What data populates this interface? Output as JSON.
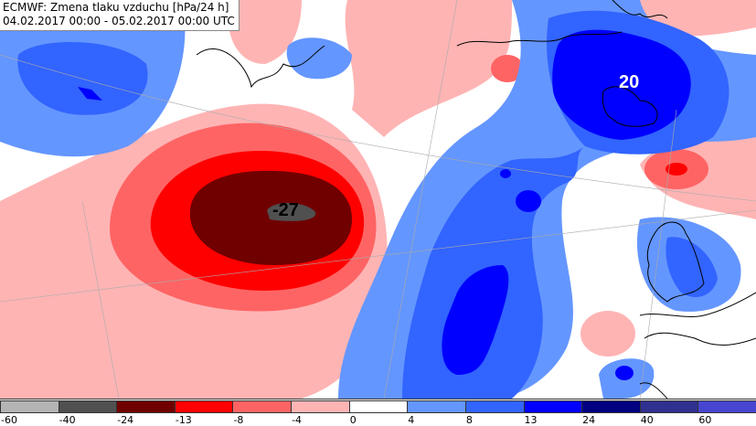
{
  "title": {
    "line1": "ECMWF: Zmena tlaku vzduchu [hPa/24 h]",
    "line2": "04.02.2017 00:00 - 05.02.2017 00:00 UTC"
  },
  "map_labels": {
    "low_value": "-27",
    "high_value": "20"
  },
  "legend": {
    "unit": "hPa/24 h",
    "labels": [
      "-60",
      "-40",
      "-24",
      "-13",
      "-8",
      "-4",
      "0",
      "4",
      "8",
      "13",
      "24",
      "40",
      "60"
    ],
    "colors": [
      "#b4b4b4",
      "#505050",
      "#700000",
      "#ff0000",
      "#ff6464",
      "#ffb4b4",
      "#ffffff",
      "#6496ff",
      "#3264ff",
      "#0000ff",
      "#000080",
      "#303090",
      "#4646d0"
    ]
  }
}
